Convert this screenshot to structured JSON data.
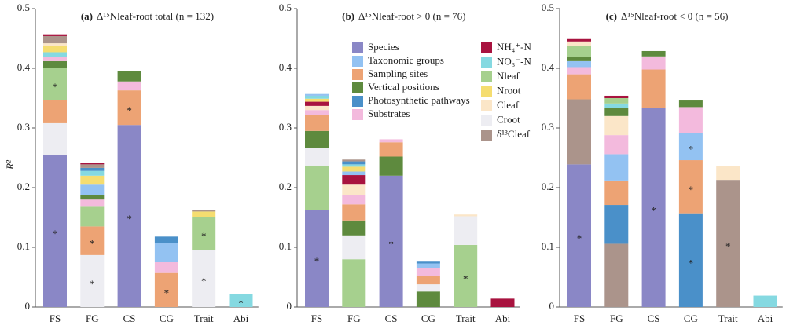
{
  "legend": [
    {
      "name": "Species",
      "color": "#8a87c6"
    },
    {
      "name": "Taxonomic groups",
      "color": "#93c2f2"
    },
    {
      "name": "Sampling sites",
      "color": "#eda374"
    },
    {
      "name": "Vertical positions",
      "color": "#5e8a3e"
    },
    {
      "name": "Photosynthetic pathways",
      "color": "#4a90c9"
    },
    {
      "name": "Substrates",
      "color": "#f3badd"
    },
    {
      "name": "NH₄⁺-N",
      "color": "#a8133f"
    },
    {
      "name": "NO₃⁻-N",
      "color": "#85d9e1"
    },
    {
      "name": "Nleaf",
      "color": "#a6d08e"
    },
    {
      "name": "Nroot",
      "color": "#f5dd70"
    },
    {
      "name": "Cleaf",
      "color": "#fbe6c8"
    },
    {
      "name": "Croot",
      "color": "#ededf2"
    },
    {
      "name": "δ¹³Cleaf",
      "color": "#ab948b"
    }
  ],
  "chart_data": [
    {
      "type": "bar",
      "stacked": true,
      "panel": "(a)",
      "title": "Δ¹⁵Nleaf-root total (n = 132)",
      "ylabel": "R²",
      "categories": [
        "FS",
        "FG",
        "CS",
        "CG",
        "Trait",
        "Abi"
      ],
      "ylim": [
        0,
        0.5
      ],
      "yticks": [
        0,
        0.1,
        0.2,
        0.3,
        0.4,
        0.5
      ],
      "bars": [
        [
          {
            "variable": "Species",
            "value": 0.255,
            "label": "*"
          },
          {
            "variable": "Croot",
            "value": 0.053
          },
          {
            "variable": "Sampling sites",
            "value": 0.039
          },
          {
            "variable": "Nleaf",
            "value": 0.053,
            "label": "*"
          },
          {
            "variable": "Vertical positions",
            "value": 0.012
          },
          {
            "variable": "Substrates",
            "value": 0.007
          },
          {
            "variable": "NO₃⁻-N",
            "value": 0.008
          },
          {
            "variable": "Nroot",
            "value": 0.01
          },
          {
            "variable": "Cleaf",
            "value": 0.005
          },
          {
            "variable": "δ¹³Cleaf",
            "value": 0.012
          },
          {
            "variable": "NH₄⁺-N",
            "value": 0.003
          }
        ],
        [
          {
            "variable": "Croot",
            "value": 0.087,
            "label": "*"
          },
          {
            "variable": "Sampling sites",
            "value": 0.048,
            "label": "*"
          },
          {
            "variable": "Nleaf",
            "value": 0.033
          },
          {
            "variable": "Substrates",
            "value": 0.012
          },
          {
            "variable": "Vertical positions",
            "value": 0.007
          },
          {
            "variable": "Taxonomic groups",
            "value": 0.018
          },
          {
            "variable": "Nroot",
            "value": 0.015
          },
          {
            "variable": "NO₃⁻-N",
            "value": 0.008
          },
          {
            "variable": "Photosynthetic pathways",
            "value": 0.005
          },
          {
            "variable": "δ¹³Cleaf",
            "value": 0.006
          },
          {
            "variable": "NH₄⁺-N",
            "value": 0.003
          }
        ],
        [
          {
            "variable": "Species",
            "value": 0.305,
            "label": "*"
          },
          {
            "variable": "Sampling sites",
            "value": 0.058,
            "label": "*"
          },
          {
            "variable": "Substrates",
            "value": 0.015
          },
          {
            "variable": "Vertical positions",
            "value": 0.017
          }
        ],
        [
          {
            "variable": "Sampling sites",
            "value": 0.057,
            "label": "*"
          },
          {
            "variable": "Substrates",
            "value": 0.018
          },
          {
            "variable": "Taxonomic groups",
            "value": 0.032
          },
          {
            "variable": "Photosynthetic pathways",
            "value": 0.011
          }
        ],
        [
          {
            "variable": "Croot",
            "value": 0.096,
            "label": "*"
          },
          {
            "variable": "Nleaf",
            "value": 0.055,
            "label": "*"
          },
          {
            "variable": "Nroot",
            "value": 0.009
          },
          {
            "variable": "δ¹³Cleaf",
            "value": 0.002
          }
        ],
        [
          {
            "variable": "NO₃⁻-N",
            "value": 0.022,
            "label": "*"
          }
        ]
      ]
    },
    {
      "type": "bar",
      "stacked": true,
      "panel": "(b)",
      "title": "Δ¹⁵Nleaf-root > 0 (n = 76)",
      "categories": [
        "FS",
        "FG",
        "CS",
        "CG",
        "Trait",
        "Abi"
      ],
      "ylim": [
        0,
        0.5
      ],
      "yticks": [
        0,
        0.1,
        0.2,
        0.3,
        0.4,
        0.5
      ],
      "bars": [
        [
          {
            "variable": "Species",
            "value": 0.163,
            "label": "*"
          },
          {
            "variable": "Nleaf",
            "value": 0.074
          },
          {
            "variable": "Croot",
            "value": 0.03
          },
          {
            "variable": "Vertical positions",
            "value": 0.028
          },
          {
            "variable": "Sampling sites",
            "value": 0.027
          },
          {
            "variable": "Substrates",
            "value": 0.008
          },
          {
            "variable": "Cleaf",
            "value": 0.007
          },
          {
            "variable": "NH₄⁺-N",
            "value": 0.007
          },
          {
            "variable": "Nroot",
            "value": 0.005
          },
          {
            "variable": "NO₃⁻-N",
            "value": 0.005
          },
          {
            "variable": "Taxonomic groups",
            "value": 0.003
          }
        ],
        [
          {
            "variable": "Nleaf",
            "value": 0.08
          },
          {
            "variable": "Croot",
            "value": 0.04
          },
          {
            "variable": "Vertical positions",
            "value": 0.025
          },
          {
            "variable": "Sampling sites",
            "value": 0.027
          },
          {
            "variable": "Substrates",
            "value": 0.016
          },
          {
            "variable": "Cleaf",
            "value": 0.017
          },
          {
            "variable": "NH₄⁺-N",
            "value": 0.016
          },
          {
            "variable": "Taxonomic groups",
            "value": 0.006
          },
          {
            "variable": "Nroot",
            "value": 0.008
          },
          {
            "variable": "NO₃⁻-N",
            "value": 0.004
          },
          {
            "variable": "Photosynthetic pathways",
            "value": 0.005
          },
          {
            "variable": "δ¹³Cleaf",
            "value": 0.003
          }
        ],
        [
          {
            "variable": "Species",
            "value": 0.22,
            "label": "*"
          },
          {
            "variable": "Vertical positions",
            "value": 0.032
          },
          {
            "variable": "Sampling sites",
            "value": 0.024
          },
          {
            "variable": "Substrates",
            "value": 0.005
          }
        ],
        [
          {
            "variable": "Vertical positions",
            "value": 0.026
          },
          {
            "variable": "Croot",
            "value": 0.012
          },
          {
            "variable": "Sampling sites",
            "value": 0.014
          },
          {
            "variable": "Substrates",
            "value": 0.013
          },
          {
            "variable": "Taxonomic groups",
            "value": 0.008
          },
          {
            "variable": "Photosynthetic pathways",
            "value": 0.003
          }
        ],
        [
          {
            "variable": "Nleaf",
            "value": 0.104,
            "label": "*"
          },
          {
            "variable": "Croot",
            "value": 0.048
          },
          {
            "variable": "Cleaf",
            "value": 0.003
          }
        ],
        [
          {
            "variable": "NH₄⁺-N",
            "value": 0.014
          }
        ]
      ]
    },
    {
      "type": "bar",
      "stacked": true,
      "panel": "(c)",
      "title": "Δ¹⁵Nleaf-root < 0 (n = 56)",
      "categories": [
        "FS",
        "FG",
        "CS",
        "CG",
        "Trait",
        "Abi"
      ],
      "ylim": [
        0,
        0.5
      ],
      "yticks": [
        0,
        0.1,
        0.2,
        0.3,
        0.4,
        0.5
      ],
      "bars": [
        [
          {
            "variable": "Species",
            "value": 0.239,
            "label": "*"
          },
          {
            "variable": "δ¹³Cleaf",
            "value": 0.109
          },
          {
            "variable": "Sampling sites",
            "value": 0.042
          },
          {
            "variable": "Substrates",
            "value": 0.012
          },
          {
            "variable": "Taxonomic groups",
            "value": 0.01
          },
          {
            "variable": "Vertical positions",
            "value": 0.007
          },
          {
            "variable": "Nleaf",
            "value": 0.018
          },
          {
            "variable": "Cleaf",
            "value": 0.008
          },
          {
            "variable": "NH₄⁺-N",
            "value": 0.004
          }
        ],
        [
          {
            "variable": "δ¹³Cleaf",
            "value": 0.106
          },
          {
            "variable": "Photosynthetic pathways",
            "value": 0.065
          },
          {
            "variable": "Sampling sites",
            "value": 0.041
          },
          {
            "variable": "Taxonomic groups",
            "value": 0.044
          },
          {
            "variable": "Substrates",
            "value": 0.032
          },
          {
            "variable": "Cleaf",
            "value": 0.032
          },
          {
            "variable": "Vertical positions",
            "value": 0.013
          },
          {
            "variable": "NO₃⁻-N",
            "value": 0.008
          },
          {
            "variable": "Nleaf",
            "value": 0.009
          },
          {
            "variable": "NH₄⁺-N",
            "value": 0.004
          }
        ],
        [
          {
            "variable": "Species",
            "value": 0.333,
            "label": "*"
          },
          {
            "variable": "Sampling sites",
            "value": 0.065
          },
          {
            "variable": "Substrates",
            "value": 0.022
          },
          {
            "variable": "Vertical positions",
            "value": 0.009
          }
        ],
        [
          {
            "variable": "Photosynthetic pathways",
            "value": 0.157,
            "label": "*"
          },
          {
            "variable": "Sampling sites",
            "value": 0.089,
            "label": "*"
          },
          {
            "variable": "Taxonomic groups",
            "value": 0.046,
            "label": "*"
          },
          {
            "variable": "Substrates",
            "value": 0.043
          },
          {
            "variable": "Vertical positions",
            "value": 0.011
          }
        ],
        [
          {
            "variable": "δ¹³Cleaf",
            "value": 0.213,
            "label": "*"
          },
          {
            "variable": "Cleaf",
            "value": 0.023
          }
        ],
        [
          {
            "variable": "NO₃⁻-N",
            "value": 0.019
          }
        ]
      ]
    }
  ]
}
